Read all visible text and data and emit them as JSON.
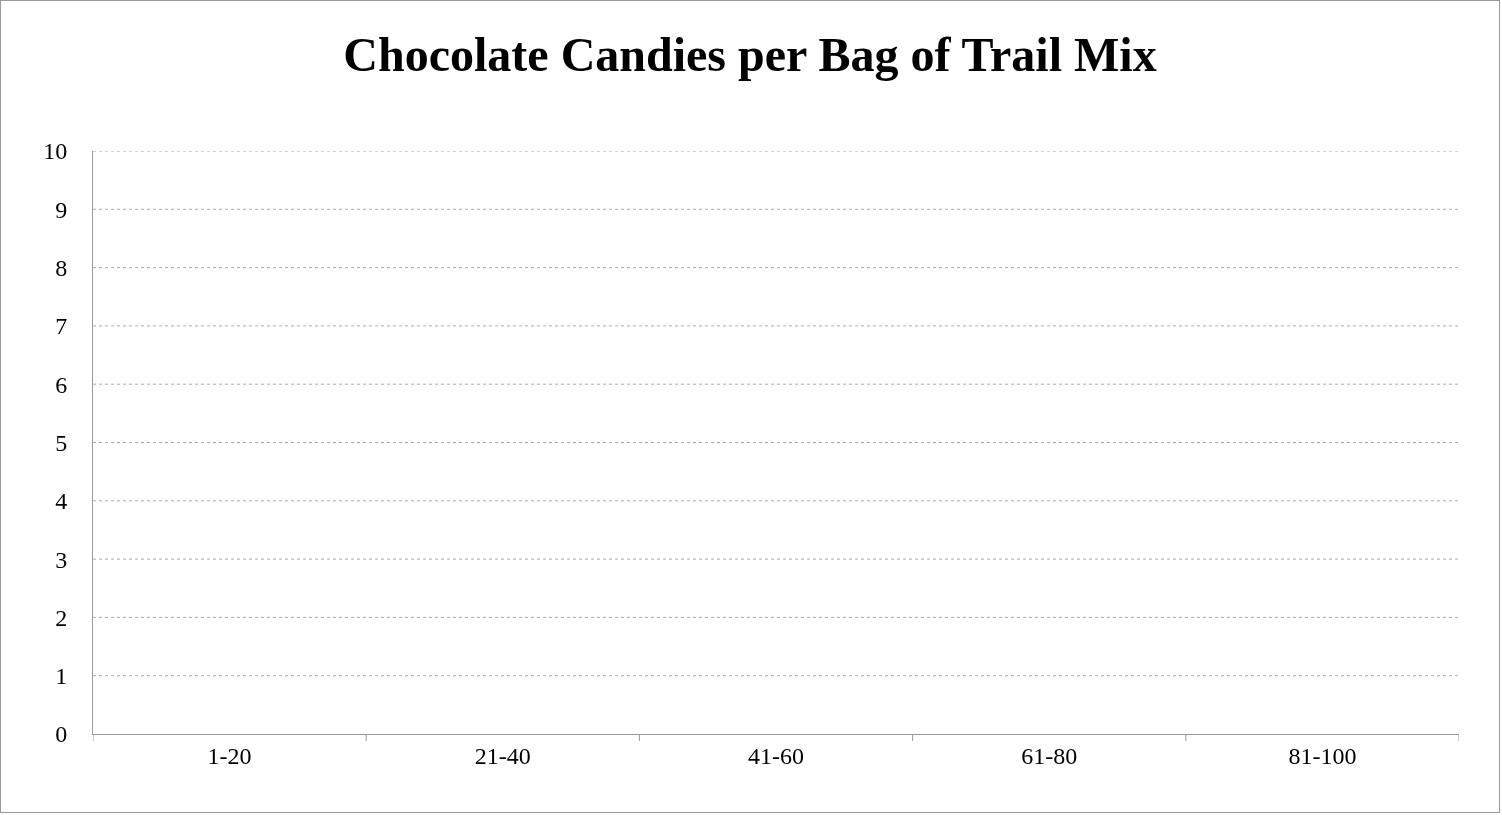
{
  "chart_data": {
    "type": "bar",
    "title": "Chocolate Candies per Bag of Trail Mix",
    "categories": [
      "1-20",
      "21-40",
      "41-60",
      "61-80",
      "81-100"
    ],
    "values": [
      null,
      null,
      null,
      null,
      null
    ],
    "ylim": [
      0,
      10
    ],
    "yticks": [
      0,
      1,
      2,
      3,
      4,
      5,
      6,
      7,
      8,
      9,
      10
    ],
    "grid": "y"
  }
}
